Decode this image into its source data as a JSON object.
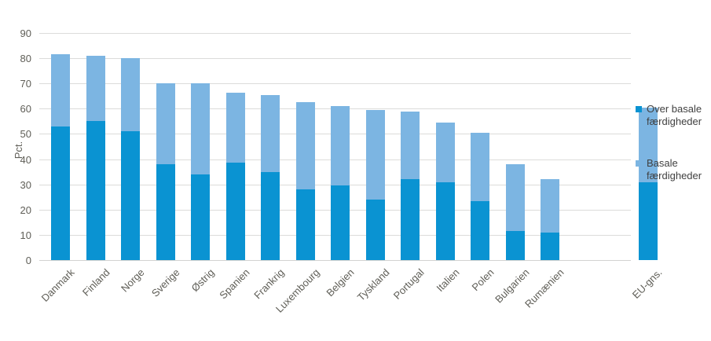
{
  "chart_data": {
    "type": "bar",
    "stacked": true,
    "title": "",
    "xlabel": "",
    "ylabel": "Pct.",
    "ylim": [
      0,
      90
    ],
    "y_ticks": [
      0,
      10,
      20,
      30,
      40,
      50,
      60,
      70,
      80,
      90
    ],
    "grid": true,
    "legend_position": "right",
    "gap_slots_before_last_category": 1,
    "categories": [
      "Danmark",
      "Finland",
      "Norge",
      "Sverige",
      "Østrig",
      "Spanien",
      "Frankrig",
      "Luxembourg",
      "Belgien",
      "Tyskland",
      "Portugal",
      "Italien",
      "Polen",
      "Bulgarien",
      "Rumænien",
      "EU-gns."
    ],
    "series": [
      {
        "name": "Over basale færdigheder",
        "color": "#0a93d2",
        "values": [
          53,
          55,
          51,
          38,
          34,
          38.5,
          35,
          28,
          29.5,
          24,
          32,
          31,
          23.5,
          11.5,
          11,
          31
        ]
      },
      {
        "name": "Basale færdigheder",
        "color": "#7cb5e2",
        "values": [
          28.5,
          26,
          29,
          32,
          36,
          28,
          30.5,
          34.5,
          31.5,
          35.5,
          27,
          23.5,
          27,
          26.5,
          21,
          29.5
        ]
      }
    ],
    "totals": [
      81.5,
      81,
      80,
      70,
      70,
      66.5,
      65.5,
      62.5,
      61,
      59.5,
      59,
      54.5,
      50.5,
      38,
      32,
      60.5
    ]
  },
  "colors": {
    "background": "#ffffff",
    "gridline": "#dcdcda",
    "axis_line": "#d3d3d1",
    "tick_text": "#5f5e57",
    "legend_text": "#404040",
    "series_dark": "#0a93d2",
    "series_light": "#7cb5e2"
  }
}
